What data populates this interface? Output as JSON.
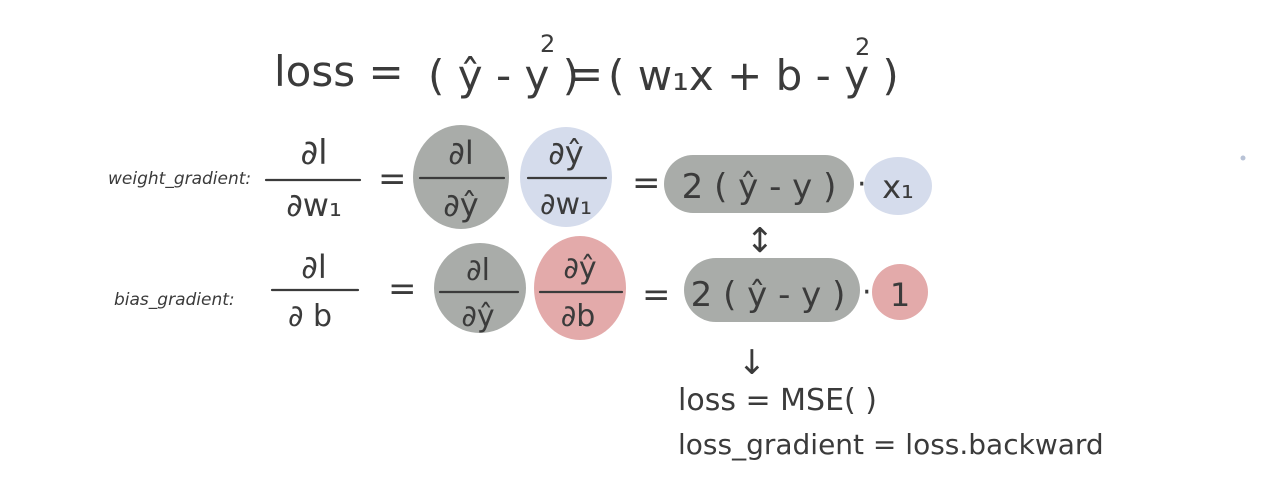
{
  "colors": {
    "ink": "#3b3b3b",
    "gray_highlight": "#a9aca9",
    "blue_highlight": "#d5dcec",
    "red_highlight": "#e3aaaa"
  },
  "loss_eq": {
    "lhs": "loss =",
    "mid": "( ŷ - y )",
    "exp1": "2",
    "eq": "=",
    "rhs": "( w₁x + b - y )",
    "exp2": "2"
  },
  "weight_row": {
    "label": "weight_gradient:",
    "lhs_num": "∂l",
    "lhs_den": "∂w₁",
    "eq1": "=",
    "f1_num": "∂l",
    "f1_den": "∂ŷ",
    "f2_num": "∂ŷ",
    "f2_den": "∂w₁",
    "eq2": "=",
    "term": "2 ( ŷ - y )",
    "dot": "·",
    "factor": "x₁"
  },
  "bias_row": {
    "label": "bias_gradient:",
    "lhs_num": "∂l",
    "lhs_den": "∂ b",
    "eq1": "=",
    "f1_num": "∂l",
    "f1_den": "∂ŷ",
    "f2_num": "∂ŷ",
    "f2_den": "∂b",
    "eq2": "=",
    "term": "2 ( ŷ - y )",
    "dot": "·",
    "factor": "1"
  },
  "notes": {
    "vertical_arrow": "↕",
    "down_arrow": "↓",
    "line1": "loss = MSE( )",
    "line2": "loss_gradient = loss.backward"
  }
}
